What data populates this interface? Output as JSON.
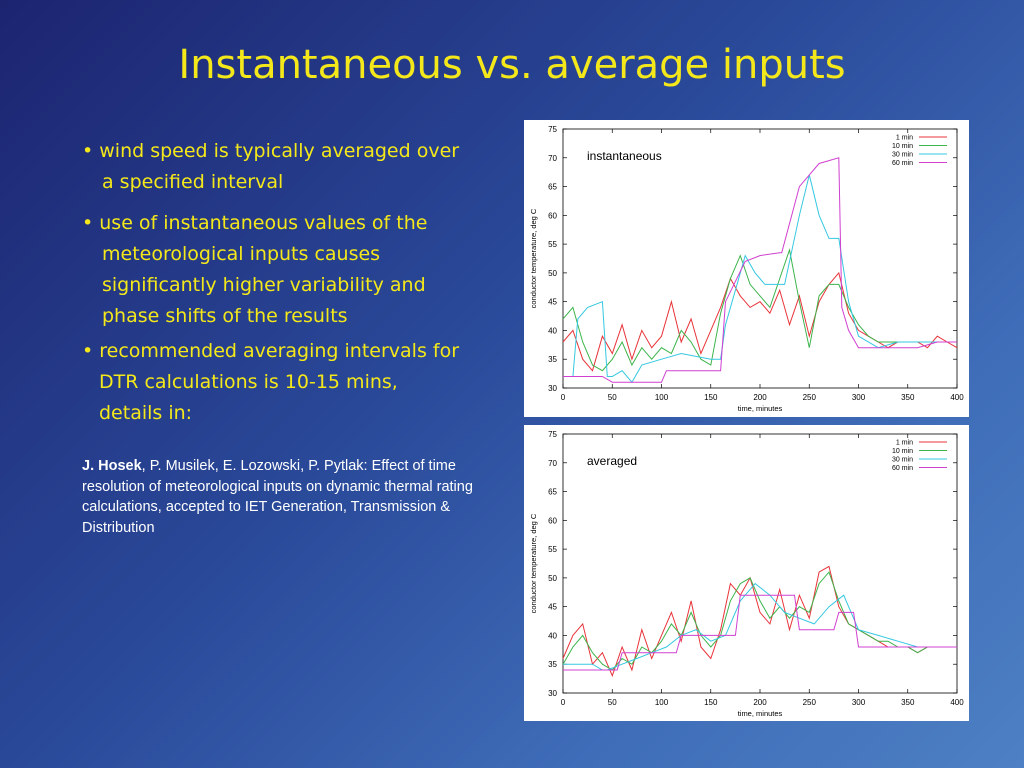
{
  "slide": {
    "title": "Instantaneous vs. average inputs",
    "bullets": [
      {
        "lines": [
          "• wind speed is typically averaged over",
          "a specified interval"
        ]
      },
      {
        "lines": [
          "• use of instantaneous values of the",
          "meteorological inputs causes",
          "significantly higher variability and",
          "phase shifts of the  results"
        ]
      },
      {
        "lines": [
          "• recommended averaging intervals for",
          "DTR calculations is 10-15 mins,",
          "details in:"
        ]
      }
    ],
    "citation": {
      "author_bold": "J. Hosek",
      "rest": ", P. Musilek, E. Lozowski, P. Pytlak: Effect of time resolution of meteorological inputs on dynamic thermal rating calculations, accepted to IET Generation, Transmission & Distribution"
    },
    "colors": {
      "title": "#f4e81a",
      "bullets": "#f4e81a",
      "citation": "#ffffff"
    }
  },
  "chart_data": [
    {
      "type": "line",
      "label": "instantaneous",
      "xlabel": "time, minutes",
      "ylabel": "conductor temperature, deg C",
      "xlim": [
        0,
        400
      ],
      "ylim": [
        30,
        75
      ],
      "xticks": [
        0,
        50,
        100,
        150,
        200,
        250,
        300,
        350,
        400
      ],
      "yticks": [
        30,
        35,
        40,
        45,
        50,
        55,
        60,
        65,
        70,
        75
      ],
      "legend": "top-right",
      "series": [
        {
          "name": "1 min",
          "color": "#e8343a",
          "x": [
            0,
            10,
            20,
            30,
            40,
            50,
            60,
            70,
            80,
            90,
            100,
            110,
            120,
            130,
            140,
            150,
            160,
            170,
            180,
            190,
            200,
            210,
            220,
            230,
            240,
            250,
            260,
            270,
            280,
            290,
            300,
            310,
            320,
            330,
            340,
            350,
            360,
            370,
            380,
            390,
            400
          ],
          "y": [
            38,
            40,
            35,
            33,
            39,
            36,
            41,
            35,
            40,
            37,
            39,
            45,
            38,
            42,
            36,
            40,
            44,
            49,
            46,
            44,
            45,
            43,
            47,
            41,
            46,
            39,
            45,
            48,
            50,
            43,
            40,
            39,
            38,
            37,
            38,
            38,
            38,
            37,
            39,
            38,
            37
          ]
        },
        {
          "name": "10 min",
          "color": "#3cb44b",
          "x": [
            0,
            10,
            20,
            30,
            40,
            50,
            60,
            70,
            80,
            90,
            100,
            110,
            120,
            130,
            140,
            150,
            160,
            170,
            180,
            190,
            200,
            210,
            220,
            230,
            240,
            250,
            260,
            270,
            280,
            290,
            300,
            310,
            320,
            330,
            340,
            350,
            360,
            370,
            380,
            390,
            400
          ],
          "y": [
            42,
            44,
            38,
            34,
            33,
            35,
            38,
            34,
            37,
            35,
            37,
            36,
            40,
            38,
            35,
            34,
            43,
            49,
            53,
            48,
            46,
            44,
            49,
            54,
            45,
            37,
            46,
            48,
            48,
            44,
            41,
            39,
            38,
            38,
            38,
            38,
            38,
            38,
            38,
            38,
            38
          ]
        },
        {
          "name": "30 min",
          "color": "#35c8e0",
          "x": [
            0,
            10,
            15,
            25,
            40,
            45,
            50,
            60,
            70,
            80,
            100,
            120,
            150,
            160,
            165,
            175,
            185,
            195,
            205,
            220,
            225,
            240,
            250,
            260,
            270,
            280,
            290,
            300,
            320,
            340,
            360,
            380,
            400
          ],
          "y": [
            32,
            32,
            42,
            44,
            45,
            32,
            32,
            33,
            31,
            34,
            35,
            36,
            35,
            35,
            41,
            47,
            53,
            50,
            48,
            48,
            48,
            60,
            67,
            60,
            56,
            56,
            45,
            39,
            37,
            38,
            38,
            38,
            38
          ]
        },
        {
          "name": "60 min",
          "color": "#d040d0",
          "x": [
            0,
            40,
            50,
            60,
            100,
            105,
            160,
            165,
            185,
            200,
            220,
            222,
            240,
            260,
            280,
            283,
            290,
            300,
            320,
            340,
            360,
            380,
            400
          ],
          "y": [
            32,
            32,
            31,
            31,
            31,
            33,
            33,
            45,
            52,
            53,
            53.5,
            53.5,
            65,
            69,
            70,
            44,
            40,
            37,
            37,
            37,
            37,
            38,
            38
          ]
        }
      ]
    },
    {
      "type": "line",
      "label": "averaged",
      "xlabel": "time, minutes",
      "ylabel": "conductor temperature, deg C",
      "xlim": [
        0,
        400
      ],
      "ylim": [
        30,
        75
      ],
      "xticks": [
        0,
        50,
        100,
        150,
        200,
        250,
        300,
        350,
        400
      ],
      "yticks": [
        30,
        35,
        40,
        45,
        50,
        55,
        60,
        65,
        70,
        75
      ],
      "legend": "top-right",
      "series": [
        {
          "name": "1 min",
          "color": "#e8343a",
          "x": [
            0,
            10,
            20,
            30,
            40,
            50,
            60,
            70,
            80,
            90,
            100,
            110,
            120,
            130,
            140,
            150,
            160,
            170,
            180,
            190,
            200,
            210,
            220,
            230,
            240,
            250,
            260,
            270,
            280,
            290,
            300,
            310,
            320,
            330,
            340,
            350,
            360,
            370,
            380,
            390,
            400
          ],
          "y": [
            36,
            40,
            42,
            35,
            37,
            33,
            38,
            34,
            41,
            36,
            40,
            44,
            39,
            46,
            38,
            36,
            41,
            49,
            47,
            50,
            44,
            42,
            48,
            41,
            47,
            43,
            51,
            52,
            45,
            42,
            41,
            40,
            39,
            38,
            38,
            38,
            37,
            38,
            38,
            38,
            38
          ]
        },
        {
          "name": "10 min",
          "color": "#3cb44b",
          "x": [
            0,
            10,
            20,
            30,
            40,
            50,
            60,
            70,
            80,
            90,
            100,
            110,
            120,
            130,
            140,
            150,
            160,
            170,
            180,
            190,
            200,
            210,
            220,
            230,
            240,
            250,
            260,
            270,
            280,
            290,
            300,
            310,
            320,
            330,
            340,
            350,
            360,
            370,
            380,
            390,
            400
          ],
          "y": [
            35,
            38,
            40,
            37,
            35,
            34,
            36,
            35,
            38,
            37,
            39,
            42,
            40,
            44,
            40,
            38,
            40,
            46,
            49,
            50,
            46,
            43,
            45,
            43,
            45,
            44,
            49,
            51,
            46,
            42,
            41,
            40,
            39,
            39,
            38,
            38,
            37,
            38,
            38,
            38,
            38
          ]
        },
        {
          "name": "30 min",
          "color": "#35c8e0",
          "x": [
            0,
            30,
            40,
            45,
            60,
            75,
            90,
            105,
            120,
            135,
            150,
            165,
            180,
            195,
            210,
            225,
            240,
            255,
            270,
            285,
            300,
            320,
            340,
            360,
            380,
            400
          ],
          "y": [
            35,
            35,
            34,
            34,
            35,
            36,
            37,
            38,
            40,
            41,
            39,
            40,
            46,
            49,
            47,
            44,
            43,
            42,
            45,
            47,
            41,
            40,
            39,
            38,
            38,
            38
          ]
        },
        {
          "name": "60 min",
          "color": "#d040d0",
          "x": [
            0,
            55,
            60,
            115,
            120,
            175,
            180,
            235,
            240,
            275,
            280,
            295,
            300,
            355,
            360,
            400
          ],
          "y": [
            34,
            34,
            37,
            37,
            40,
            40,
            47,
            47,
            41,
            41,
            44,
            44,
            38,
            38,
            38,
            38
          ]
        }
      ]
    }
  ]
}
